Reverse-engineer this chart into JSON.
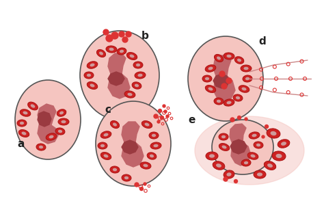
{
  "background_color": "#ffffff",
  "cell_fill": "#f5c5c0",
  "cell_edge": "#555555",
  "nucleus_fill": "#c0656a",
  "nucleus_dark": "#9a3a40",
  "granule_fill": "#cc2222",
  "granule_edge": "#aa1111",
  "granule_core": "#d0d0d0",
  "small_dot_color": "#dd3333",
  "line_color": "#cc8888",
  "label_color": "#222222",
  "label_fontsize": 11,
  "labels": [
    "a",
    "b",
    "c",
    "d",
    "e"
  ],
  "figsize": [
    4.74,
    2.88
  ],
  "dpi": 100
}
